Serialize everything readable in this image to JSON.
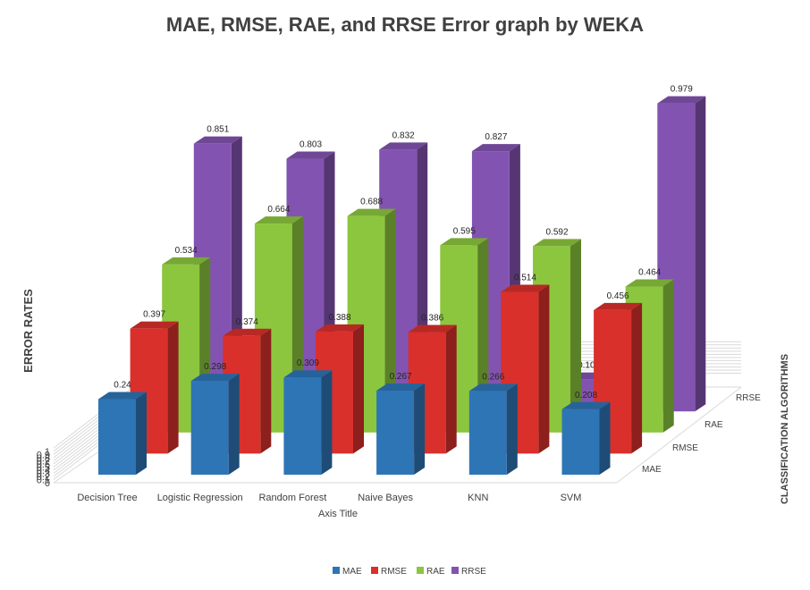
{
  "chart_data": {
    "type": "bar",
    "title": "MAE, RMSE, RAE, and RRSE Error graph by WEKA",
    "xlabel": "Axis Title",
    "ylabel": "ERROR RATES",
    "zlabel": "CLASSIFICATION ALGORITHMS",
    "categories": [
      "Decision Tree",
      "Logistic Regression",
      "Random Forest",
      "Naive Bayes",
      "KNN",
      "SVM"
    ],
    "yticks": [
      "0",
      "0.1",
      "0.2",
      "0.3",
      "0.4",
      "0.5",
      "0.6",
      "0.7",
      "0.8",
      "0.9",
      "1"
    ],
    "ylim": [
      0,
      1.1
    ],
    "grid": true,
    "legend": "bottom",
    "series": [
      {
        "name": "MAE",
        "color": "#2e75b6",
        "values": [
          0.24,
          0.298,
          0.309,
          0.267,
          0.266,
          0.208
        ],
        "labels": [
          "0.24",
          "0.298",
          "0.309",
          "0.267",
          "0.266",
          "0.208"
        ]
      },
      {
        "name": "RMSE",
        "color": "#d9302c",
        "values": [
          0.397,
          0.374,
          0.388,
          0.386,
          0.514,
          0.456
        ],
        "labels": [
          "0.397",
          "0.374",
          "0.388",
          "0.386",
          "0.514",
          "0.456"
        ]
      },
      {
        "name": "RAE",
        "color": "#8cc63e",
        "values": [
          0.534,
          0.664,
          0.688,
          0.595,
          0.592,
          0.464
        ],
        "labels": [
          "0.534",
          "0.664",
          "0.688",
          "0.595",
          "0.592",
          "0.464"
        ]
      },
      {
        "name": "RRSE",
        "color": "#8253b0",
        "values": [
          0.851,
          0.803,
          0.832,
          0.827,
          0.101,
          0.979
        ],
        "labels": [
          "0.851",
          "0.803",
          "0.832",
          "0.827",
          "0.101",
          "0.979"
        ]
      }
    ]
  }
}
